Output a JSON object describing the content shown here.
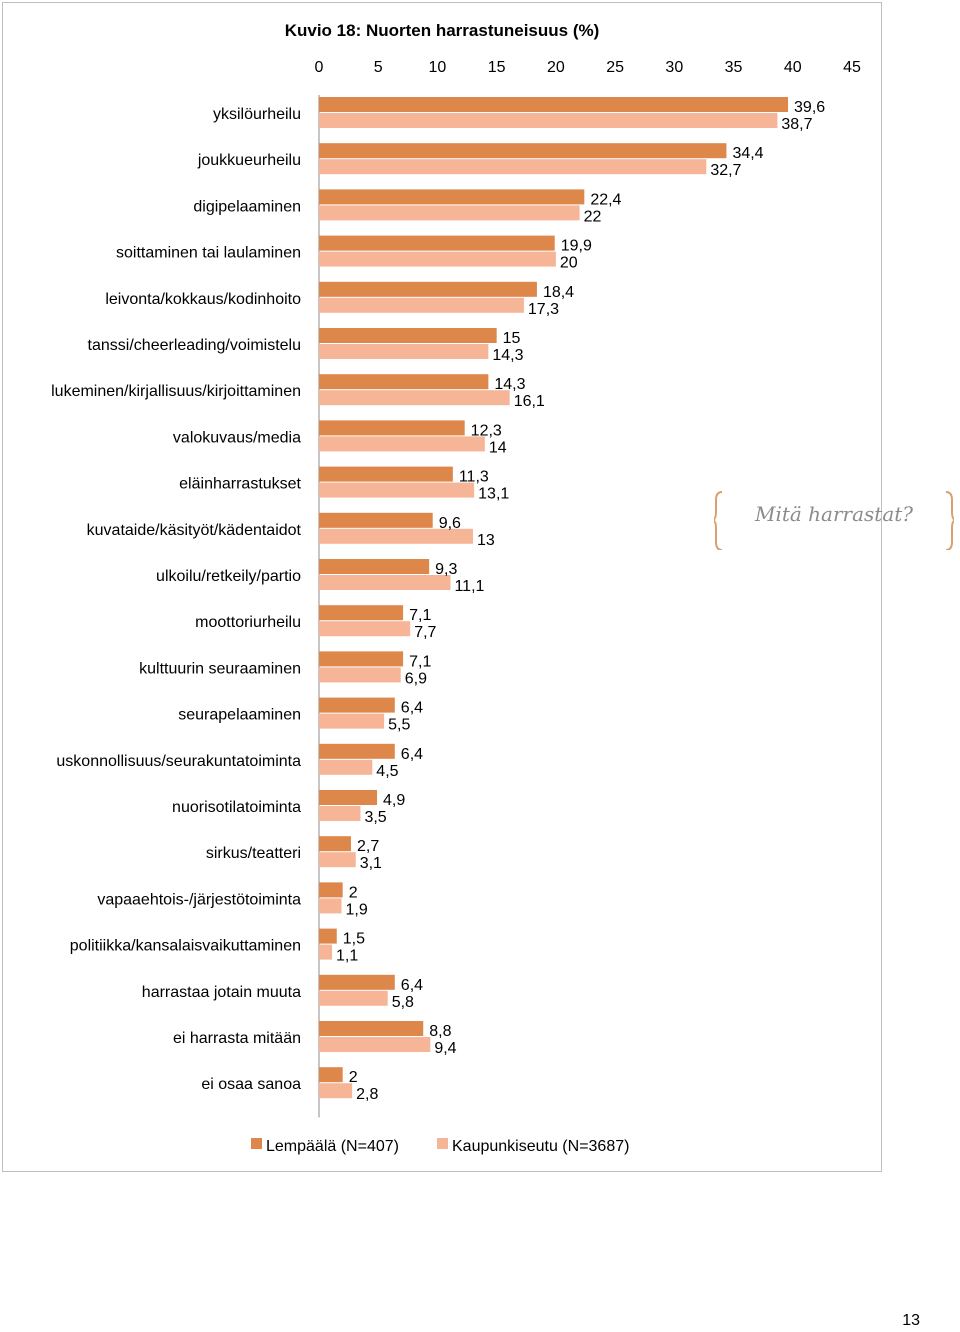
{
  "chart_data": {
    "type": "bar",
    "orientation": "horizontal",
    "title": "Kuvio 18: Nuorten harrastuneisuus (%)",
    "xlim": [
      0,
      45
    ],
    "x_ticks": [
      0,
      5,
      10,
      15,
      20,
      25,
      30,
      35,
      40,
      45
    ],
    "x_tick_labels": [
      "0",
      "5",
      "10",
      "15",
      "20",
      "25",
      "30",
      "35",
      "40",
      "45"
    ],
    "grid": false,
    "legend_position": "bottom",
    "categories": [
      "yksilöurheilu",
      "joukkueurheilu",
      "digipelaaminen",
      "soittaminen tai laulaminen",
      "leivonta/kokkaus/kodinhoito",
      "tanssi/cheerleading/voimistelu",
      "lukeminen/kirjallisuus/kirjoittaminen",
      "valokuvaus/media",
      "eläinharrastukset",
      "kuvataide/käsityöt/kädentaidot",
      "ulkoilu/retkeily/partio",
      "moottoriurheilu",
      "kulttuurin seuraaminen",
      "seurapelaaminen",
      "uskonnollisuus/seurakuntatoiminta",
      "nuorisotilatoiminta",
      "sirkus/teatteri",
      "vapaaehtois-/järjestötoiminta",
      "politiikka/kansalaisvaikuttaminen",
      "harrastaa jotain muuta",
      "ei harrasta mitään",
      "ei osaa sanoa"
    ],
    "series": [
      {
        "name": "Lempäälä (N=407)",
        "color": "#dd874a",
        "values": [
          39.6,
          34.4,
          22.4,
          19.9,
          18.4,
          15,
          14.3,
          12.3,
          11.3,
          9.6,
          9.3,
          7.1,
          7.1,
          6.4,
          6.4,
          4.9,
          2.7,
          2,
          1.5,
          6.4,
          8.8,
          2
        ],
        "labels": [
          "39,6",
          "34,4",
          "22,4",
          "19,9",
          "18,4",
          "15",
          "14,3",
          "12,3",
          "11,3",
          "9,6",
          "9,3",
          "7,1",
          "7,1",
          "6,4",
          "6,4",
          "4,9",
          "2,7",
          "2",
          "1,5",
          "6,4",
          "8,8",
          "2"
        ]
      },
      {
        "name": "Kaupunkiseutu (N=3687)",
        "color": "#f6b596",
        "values": [
          38.7,
          32.7,
          22,
          20,
          17.3,
          14.3,
          16.1,
          14,
          13.1,
          13,
          11.1,
          7.7,
          6.9,
          5.5,
          4.5,
          3.5,
          3.1,
          1.9,
          1.1,
          5.8,
          9.4,
          2.8
        ],
        "labels": [
          "38,7",
          "32,7",
          "22",
          "20",
          "17,3",
          "14,3",
          "16,1",
          "14",
          "13,1",
          "13",
          "11,1",
          "7,7",
          "6,9",
          "5,5",
          "4,5",
          "3,5",
          "3,1",
          "1,9",
          "1,1",
          "5,8",
          "9,4",
          "2,8"
        ]
      }
    ]
  },
  "callout": {
    "text": "Mitä harrastat?",
    "color": "#8c8c8c"
  },
  "page": {
    "number": "13"
  }
}
